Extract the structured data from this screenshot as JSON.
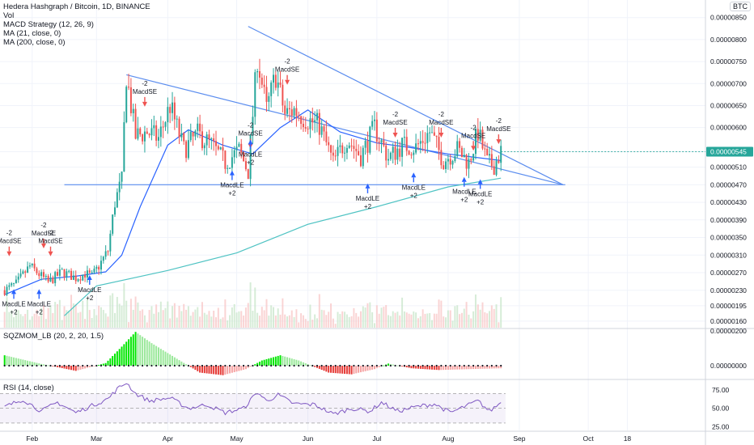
{
  "header": {
    "title": "Hedera Hashgraph / Bitcoin, 1D, BINANCE",
    "indicators": [
      "Vol",
      "MACD Strategy (12, 26, 9)",
      "MA (21, close, 0)",
      "MA (200, close, 0)"
    ],
    "currency": "BTC"
  },
  "panes": {
    "squeeze_label": "SQZMOM_LB (20, 2, 20, 1.5)",
    "rsi_label": "RSI (14, close)"
  },
  "colors": {
    "up": "#26a69a",
    "down": "#ef5350",
    "ma21": "#2962ff",
    "ma200": "#4fc3c3",
    "trendline": "#5b8def",
    "sqz_up_strong": "#00e600",
    "sqz_up_weak": "#9be89b",
    "sqz_down_strong": "#e53935",
    "sqz_down_weak": "#f5a3a3",
    "rsi": "#7e57c2",
    "price_tag": "#26a69a"
  },
  "chart_data": [
    {
      "type": "candlestick",
      "title": "Hedera Hashgraph / Bitcoin, 1D, BINANCE",
      "xlabel": "",
      "ylabel": "",
      "x_ticks": [
        "Feb",
        "Mar",
        "Apr",
        "May",
        "Jun",
        "Jul",
        "Aug",
        "Sep",
        "Oct",
        "18"
      ],
      "y_ticks": [
        "0.00000850",
        "0.00000800",
        "0.00000750",
        "0.00000700",
        "0.00000650",
        "0.00000600",
        "0.00000545",
        "0.00000510",
        "0.00000470",
        "0.00000430",
        "0.00000390",
        "0.00000350",
        "0.00000310",
        "0.00000270",
        "0.00000230",
        "0.00000195",
        "0.00000160"
      ],
      "last_price": "0.00000545",
      "ylim": [
        1.45e-06,
        8.9e-06
      ],
      "close_series": [
        {
          "date": "2019-01-20",
          "close": 2.3e-06
        },
        {
          "date": "2019-01-25",
          "close": 2.45e-06
        },
        {
          "date": "2019-01-31",
          "close": 2.85e-06
        },
        {
          "date": "2019-02-08",
          "close": 2.48e-06
        },
        {
          "date": "2019-02-14",
          "close": 2.72e-06
        },
        {
          "date": "2019-02-20",
          "close": 2.58e-06
        },
        {
          "date": "2019-02-24",
          "close": 2.68e-06
        },
        {
          "date": "2019-02-27",
          "close": 2.62e-06
        },
        {
          "date": "2019-03-02",
          "close": 2.85e-06
        },
        {
          "date": "2019-03-06",
          "close": 3.2e-06
        },
        {
          "date": "2019-03-09",
          "close": 4.3e-06
        },
        {
          "date": "2019-03-12",
          "close": 4.8e-06
        },
        {
          "date": "2019-03-14",
          "close": 7.2e-06
        },
        {
          "date": "2019-03-18",
          "close": 5.8e-06
        },
        {
          "date": "2019-03-23",
          "close": 5.9e-06
        },
        {
          "date": "2019-03-28",
          "close": 5.75e-06
        },
        {
          "date": "2019-04-02",
          "close": 6.5e-06
        },
        {
          "date": "2019-04-08",
          "close": 5.5e-06
        },
        {
          "date": "2019-04-14",
          "close": 5.85e-06
        },
        {
          "date": "2019-04-20",
          "close": 5.6e-06
        },
        {
          "date": "2019-04-26",
          "close": 5.2e-06
        },
        {
          "date": "2019-05-02",
          "close": 5.48e-06
        },
        {
          "date": "2019-05-06",
          "close": 5e-06
        },
        {
          "date": "2019-05-10",
          "close": 7.6e-06
        },
        {
          "date": "2019-05-14",
          "close": 6.4e-06
        },
        {
          "date": "2019-05-18",
          "close": 7.2e-06
        },
        {
          "date": "2019-05-22",
          "close": 6.3e-06
        },
        {
          "date": "2019-05-26",
          "close": 6.4e-06
        },
        {
          "date": "2019-05-31",
          "close": 6.2e-06
        },
        {
          "date": "2019-06-06",
          "close": 6.05e-06
        },
        {
          "date": "2019-06-12",
          "close": 5.2e-06
        },
        {
          "date": "2019-06-18",
          "close": 5.75e-06
        },
        {
          "date": "2019-06-24",
          "close": 5.35e-06
        },
        {
          "date": "2019-06-30",
          "close": 6e-06
        },
        {
          "date": "2019-07-06",
          "close": 5.3e-06
        },
        {
          "date": "2019-07-12",
          "close": 5.6e-06
        },
        {
          "date": "2019-07-18",
          "close": 5.55e-06
        },
        {
          "date": "2019-07-24",
          "close": 5.9e-06
        },
        {
          "date": "2019-07-30",
          "close": 5.25e-06
        },
        {
          "date": "2019-08-05",
          "close": 5.5e-06
        },
        {
          "date": "2019-08-10",
          "close": 5.2e-06
        },
        {
          "date": "2019-08-14",
          "close": 5.9e-06
        },
        {
          "date": "2019-08-18",
          "close": 5.2e-06
        },
        {
          "date": "2019-08-21",
          "close": 5.15e-06
        },
        {
          "date": "2019-08-24",
          "close": 5.45e-06
        }
      ],
      "ma21_series": [
        {
          "date": "2019-01-20",
          "value": 2.2e-06
        },
        {
          "date": "2019-02-05",
          "value": 2.55e-06
        },
        {
          "date": "2019-02-20",
          "value": 2.62e-06
        },
        {
          "date": "2019-03-05",
          "value": 2.72e-06
        },
        {
          "date": "2019-03-12",
          "value": 3.1e-06
        },
        {
          "date": "2019-03-20",
          "value": 4.2e-06
        },
        {
          "date": "2019-04-01",
          "value": 5.6e-06
        },
        {
          "date": "2019-04-10",
          "value": 5.95e-06
        },
        {
          "date": "2019-04-25",
          "value": 5.6e-06
        },
        {
          "date": "2019-05-08",
          "value": 5.4e-06
        },
        {
          "date": "2019-05-20",
          "value": 6e-06
        },
        {
          "date": "2019-06-01",
          "value": 6.4e-06
        },
        {
          "date": "2019-06-15",
          "value": 5.9e-06
        },
        {
          "date": "2019-07-01",
          "value": 5.65e-06
        },
        {
          "date": "2019-07-15",
          "value": 5.55e-06
        },
        {
          "date": "2019-08-01",
          "value": 5.4e-06
        },
        {
          "date": "2019-08-24",
          "value": 5.25e-06
        }
      ],
      "ma200_series": [
        {
          "date": "2019-02-15",
          "value": 1.72e-06
        },
        {
          "date": "2019-03-01",
          "value": 2.4e-06
        },
        {
          "date": "2019-04-01",
          "value": 2.75e-06
        },
        {
          "date": "2019-05-01",
          "value": 3.15e-06
        },
        {
          "date": "2019-06-01",
          "value": 3.8e-06
        },
        {
          "date": "2019-07-01",
          "value": 4.2e-06
        },
        {
          "date": "2019-08-01",
          "value": 4.65e-06
        },
        {
          "date": "2019-08-24",
          "value": 4.85e-06
        }
      ],
      "trendlines": [
        {
          "from": {
            "date": "2019-03-14",
            "value": 7.2e-06
          },
          "to": {
            "date": "2019-09-20",
            "value": 4.7e-06
          }
        },
        {
          "from": {
            "date": "2019-05-06",
            "value": 8.3e-06
          },
          "to": {
            "date": "2019-09-20",
            "value": 4.7e-06
          }
        },
        {
          "from": {
            "date": "2019-02-15",
            "value": 4.7e-06
          },
          "to": {
            "date": "2019-09-21",
            "value": 4.7e-06
          }
        }
      ],
      "signals": [
        {
          "date": "2019-01-22",
          "value": 3e-06,
          "side": "sell",
          "label": "MacdSE",
          "qty": "-2"
        },
        {
          "date": "2019-01-24",
          "value": 2.4e-06,
          "side": "buy",
          "label": "MacdLE",
          "qty": "+2"
        },
        {
          "date": "2019-02-06",
          "value": 3.18e-06,
          "side": "sell",
          "label": "MacdSE",
          "qty": "-2"
        },
        {
          "date": "2019-02-04",
          "value": 2.4e-06,
          "side": "buy",
          "label": "MacdLE",
          "qty": "+2"
        },
        {
          "date": "2019-02-09",
          "value": 3e-06,
          "side": "sell",
          "label": "MacdSE",
          "qty": "-2"
        },
        {
          "date": "2019-02-26",
          "value": 2.72e-06,
          "side": "buy",
          "label": "MacdLE",
          "qty": "+2"
        },
        {
          "date": "2019-03-22",
          "value": 6.4e-06,
          "side": "sell",
          "label": "MacdSE",
          "qty": "-2"
        },
        {
          "date": "2019-04-29",
          "value": 5.1e-06,
          "side": "buy",
          "label": "MacdLE",
          "qty": "+2"
        },
        {
          "date": "2019-05-07",
          "value": 5.45e-06,
          "side": "sell",
          "label": "MacdSE",
          "qty": "-2"
        },
        {
          "date": "2019-05-07",
          "value": 5.8e-06,
          "side": "buy",
          "label": "MacdLE",
          "qty": "+2"
        },
        {
          "date": "2019-05-23",
          "value": 6.9e-06,
          "side": "sell",
          "label": "MacdSE",
          "qty": "-2"
        },
        {
          "date": "2019-06-27",
          "value": 4.8e-06,
          "side": "buy",
          "label": "MacdLE",
          "qty": "+2"
        },
        {
          "date": "2019-07-09",
          "value": 5.7e-06,
          "side": "sell",
          "label": "MacdSE",
          "qty": "-2"
        },
        {
          "date": "2019-07-17",
          "value": 5.05e-06,
          "side": "buy",
          "label": "MacdLE",
          "qty": "+2"
        },
        {
          "date": "2019-07-29",
          "value": 5.7e-06,
          "side": "sell",
          "label": "MacdSE",
          "qty": "-2"
        },
        {
          "date": "2019-08-08",
          "value": 4.95e-06,
          "side": "buy",
          "label": "MacdLE",
          "qty": "+2"
        },
        {
          "date": "2019-08-12",
          "value": 5.4e-06,
          "side": "sell",
          "label": "MacdSE",
          "qty": "-2"
        },
        {
          "date": "2019-08-15",
          "value": 4.9e-06,
          "side": "buy",
          "label": "MacdLE",
          "qty": "+2"
        },
        {
          "date": "2019-08-23",
          "value": 5.55e-06,
          "side": "sell",
          "label": "MacdSE",
          "qty": "-2"
        }
      ]
    },
    {
      "type": "histogram",
      "title": "SQZMOM_LB (20, 2, 20, 1.5)",
      "y_ticks": [
        "0.00000200",
        "0.00000000"
      ],
      "ylim": [
        -7.5e-07,
        2.1e-06
      ],
      "momentum_series": [
        {
          "date": "2019-01-20",
          "value": 6e-07
        },
        {
          "date": "2019-02-05",
          "value": 1e-07
        },
        {
          "date": "2019-02-20",
          "value": -3e-07
        },
        {
          "date": "2019-03-05",
          "value": 1.5e-07
        },
        {
          "date": "2019-03-12",
          "value": 1.1e-06
        },
        {
          "date": "2019-03-18",
          "value": 1.95e-06
        },
        {
          "date": "2019-03-25",
          "value": 1.3e-06
        },
        {
          "date": "2019-04-05",
          "value": 4e-07
        },
        {
          "date": "2019-04-15",
          "value": -4e-07
        },
        {
          "date": "2019-04-25",
          "value": -5.5e-07
        },
        {
          "date": "2019-05-05",
          "value": -2e-07
        },
        {
          "date": "2019-05-12",
          "value": 3e-07
        },
        {
          "date": "2019-05-20",
          "value": 6e-07
        },
        {
          "date": "2019-05-28",
          "value": 3e-07
        },
        {
          "date": "2019-06-10",
          "value": -4e-07
        },
        {
          "date": "2019-06-20",
          "value": -5e-07
        },
        {
          "date": "2019-06-30",
          "value": -2e-07
        },
        {
          "date": "2019-07-06",
          "value": 1.2e-07
        },
        {
          "date": "2019-07-16",
          "value": -1.5e-07
        },
        {
          "date": "2019-07-28",
          "value": -2.5e-07
        },
        {
          "date": "2019-08-10",
          "value": -2e-07
        },
        {
          "date": "2019-08-24",
          "value": -1.5e-07
        }
      ]
    },
    {
      "type": "line",
      "title": "RSI (14, close)",
      "y_ticks": [
        "75.00",
        "50.00",
        "25.00"
      ],
      "ylim": [
        20,
        88
      ],
      "bands": [
        70,
        50,
        30
      ],
      "rsi_series": [
        {
          "date": "2019-01-20",
          "value": 52
        },
        {
          "date": "2019-01-28",
          "value": 62
        },
        {
          "date": "2019-02-05",
          "value": 46
        },
        {
          "date": "2019-02-12",
          "value": 58
        },
        {
          "date": "2019-02-20",
          "value": 44
        },
        {
          "date": "2019-02-28",
          "value": 55
        },
        {
          "date": "2019-03-06",
          "value": 63
        },
        {
          "date": "2019-03-10",
          "value": 76
        },
        {
          "date": "2019-03-14",
          "value": 85
        },
        {
          "date": "2019-03-18",
          "value": 70
        },
        {
          "date": "2019-03-24",
          "value": 60
        },
        {
          "date": "2019-04-02",
          "value": 64
        },
        {
          "date": "2019-04-10",
          "value": 50
        },
        {
          "date": "2019-04-18",
          "value": 55
        },
        {
          "date": "2019-04-26",
          "value": 44
        },
        {
          "date": "2019-05-04",
          "value": 50
        },
        {
          "date": "2019-05-10",
          "value": 72
        },
        {
          "date": "2019-05-14",
          "value": 60
        },
        {
          "date": "2019-05-19",
          "value": 68
        },
        {
          "date": "2019-05-26",
          "value": 56
        },
        {
          "date": "2019-06-04",
          "value": 55
        },
        {
          "date": "2019-06-12",
          "value": 42
        },
        {
          "date": "2019-06-20",
          "value": 50
        },
        {
          "date": "2019-06-28",
          "value": 46
        },
        {
          "date": "2019-07-03",
          "value": 58
        },
        {
          "date": "2019-07-10",
          "value": 46
        },
        {
          "date": "2019-07-18",
          "value": 52
        },
        {
          "date": "2019-07-26",
          "value": 56
        },
        {
          "date": "2019-08-02",
          "value": 44
        },
        {
          "date": "2019-08-08",
          "value": 52
        },
        {
          "date": "2019-08-14",
          "value": 60
        },
        {
          "date": "2019-08-19",
          "value": 46
        },
        {
          "date": "2019-08-24",
          "value": 58
        }
      ]
    }
  ]
}
